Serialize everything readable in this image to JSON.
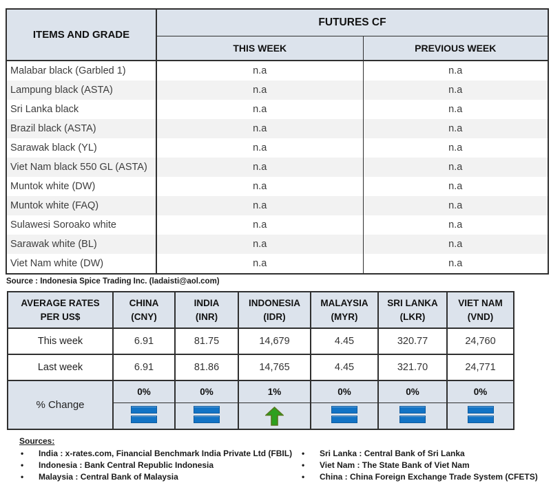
{
  "colors": {
    "header_fill": "#dce3ec",
    "alt_row_fill": "#f2f2f2",
    "border": "#2f2f2f",
    "icon_blue": "#1273c5",
    "icon_green": "#2da01f"
  },
  "futures_table": {
    "items_header": "ITEMS AND GRADE",
    "futures_header": "FUTURES CF",
    "this_week_header": "THIS WEEK",
    "previous_week_header": "PREVIOUS WEEK",
    "rows": [
      {
        "item": "Malabar black (Garbled 1)",
        "this_week": "n.a",
        "previous_week": "n.a"
      },
      {
        "item": "Lampung black (ASTA)",
        "this_week": "n.a",
        "previous_week": "n.a"
      },
      {
        "item": "Sri Lanka black",
        "this_week": "n.a",
        "previous_week": "n.a"
      },
      {
        "item": "Brazil black (ASTA)",
        "this_week": "n.a",
        "previous_week": "n.a"
      },
      {
        "item": "Sarawak black (YL)",
        "this_week": "n.a",
        "previous_week": "n.a"
      },
      {
        "item": "Viet Nam black 550 GL (ASTA)",
        "this_week": "n.a",
        "previous_week": "n.a"
      },
      {
        "item": "Muntok white (DW)",
        "this_week": "n.a",
        "previous_week": "n.a"
      },
      {
        "item": "Muntok white (FAQ)",
        "this_week": "n.a",
        "previous_week": "n.a"
      },
      {
        "item": "Sulawesi Soroako white",
        "this_week": "n.a",
        "previous_week": "n.a"
      },
      {
        "item": "Sarawak  white (BL)",
        "this_week": "n.a",
        "previous_week": "n.a"
      },
      {
        "item": "Viet Nam white (DW)",
        "this_week": "n.a",
        "previous_week": "n.a"
      }
    ]
  },
  "source_note": "Source : Indonesia Spice Trading Inc. (ladaisti@aol.com)",
  "rates_table": {
    "label_line1": "AVERAGE RATES",
    "label_line2": "PER US$",
    "columns": [
      {
        "country": "CHINA",
        "code": "(CNY)"
      },
      {
        "country": "INDIA",
        "code": "(INR)"
      },
      {
        "country": "INDONESIA",
        "code": "(IDR)"
      },
      {
        "country": "MALAYSIA",
        "code": "(MYR)"
      },
      {
        "country": "SRI LANKA",
        "code": "(LKR)"
      },
      {
        "country": "VIET NAM",
        "code": "(VND)"
      }
    ],
    "rows": [
      {
        "label": "This week",
        "values": [
          "6.91",
          "81.75",
          "14,679",
          "4.45",
          "320.77",
          "24,760"
        ]
      },
      {
        "label": "Last week",
        "values": [
          "6.91",
          "81.86",
          "14,765",
          "4.45",
          "321.70",
          "24,771"
        ]
      }
    ],
    "pct_change": {
      "label": "% Change",
      "values": [
        "0%",
        "0%",
        "1%",
        "0%",
        "0%",
        "0%"
      ],
      "icons": [
        "equal",
        "equal",
        "up",
        "equal",
        "equal",
        "equal"
      ]
    }
  },
  "sources": {
    "heading": "Sources:",
    "left": [
      "India : x-rates.com, Financial Benchmark India Private Ltd (FBIL)",
      "Indonesia : Bank Central Republic Indonesia",
      "Malaysia : Central Bank of Malaysia"
    ],
    "right": [
      "Sri Lanka : Central Bank of Sri Lanka",
      "Viet Nam : The State Bank of Viet Nam",
      "China : China Foreign Exchange Trade System (CFETS)"
    ]
  }
}
